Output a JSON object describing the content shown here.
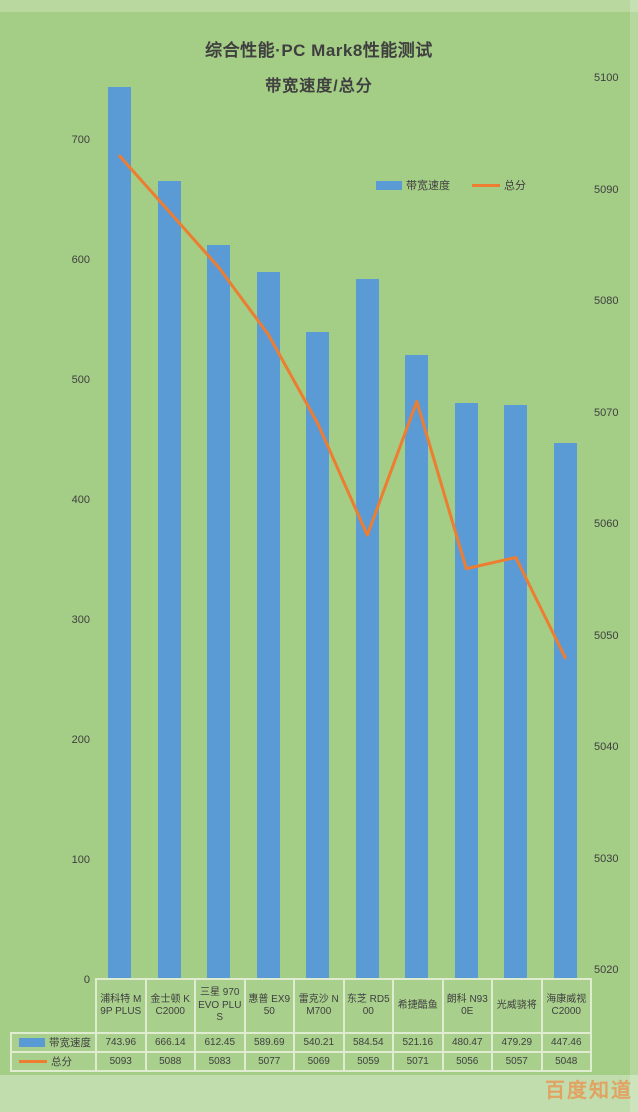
{
  "title": "综合性能·PC Mark8性能测试",
  "subtitle": "带宽速度/总分",
  "legend": {
    "bandwidth_label": "带宽速度",
    "score_label": "总分"
  },
  "watermark": "百度知道",
  "colors": {
    "background": "#a4cd86",
    "bar": "#5b9bd5",
    "line": "#ed7d31",
    "text": "#3f3f3f",
    "table_border": "#dfeccf",
    "watermark": "#e9944f"
  },
  "chart_data": {
    "type": "bar",
    "subtype": "bar+line combo, dual axis",
    "title": "综合性能·PC Mark8性能测试",
    "subtitle": "带宽速度/总分",
    "categories": [
      "浦科特 M9P PLUS",
      "金士顿 KC2000",
      "三星 970EVO PLUS",
      "惠普 EX950",
      "雷克沙 NM700",
      "东芝 RD500",
      "希捷酷鱼",
      "朗科 N930E",
      "光威骁将",
      "海康威视 C2000"
    ],
    "series": [
      {
        "name": "带宽速度",
        "type": "bar",
        "axis": "left",
        "color": "#5b9bd5",
        "values": [
          743.96,
          666.14,
          612.45,
          589.69,
          540.21,
          584.54,
          521.16,
          480.47,
          479.29,
          447.46
        ]
      },
      {
        "name": "总分",
        "type": "line",
        "axis": "right",
        "color": "#ed7d31",
        "values": [
          5093,
          5088,
          5083,
          5077,
          5069,
          5059,
          5071,
          5056,
          5057,
          5048
        ]
      }
    ],
    "left_axis": {
      "min": 0,
      "max": 700,
      "step": 100,
      "ticks": [
        0,
        100,
        200,
        300,
        400,
        500,
        600,
        700
      ]
    },
    "right_axis": {
      "min": 5020,
      "max": 5100,
      "step": 10,
      "ticks": [
        5020,
        5030,
        5040,
        5050,
        5060,
        5070,
        5080,
        5090,
        5100
      ]
    },
    "grid": false,
    "legend_position": "top-right",
    "data_table_shown": true
  }
}
